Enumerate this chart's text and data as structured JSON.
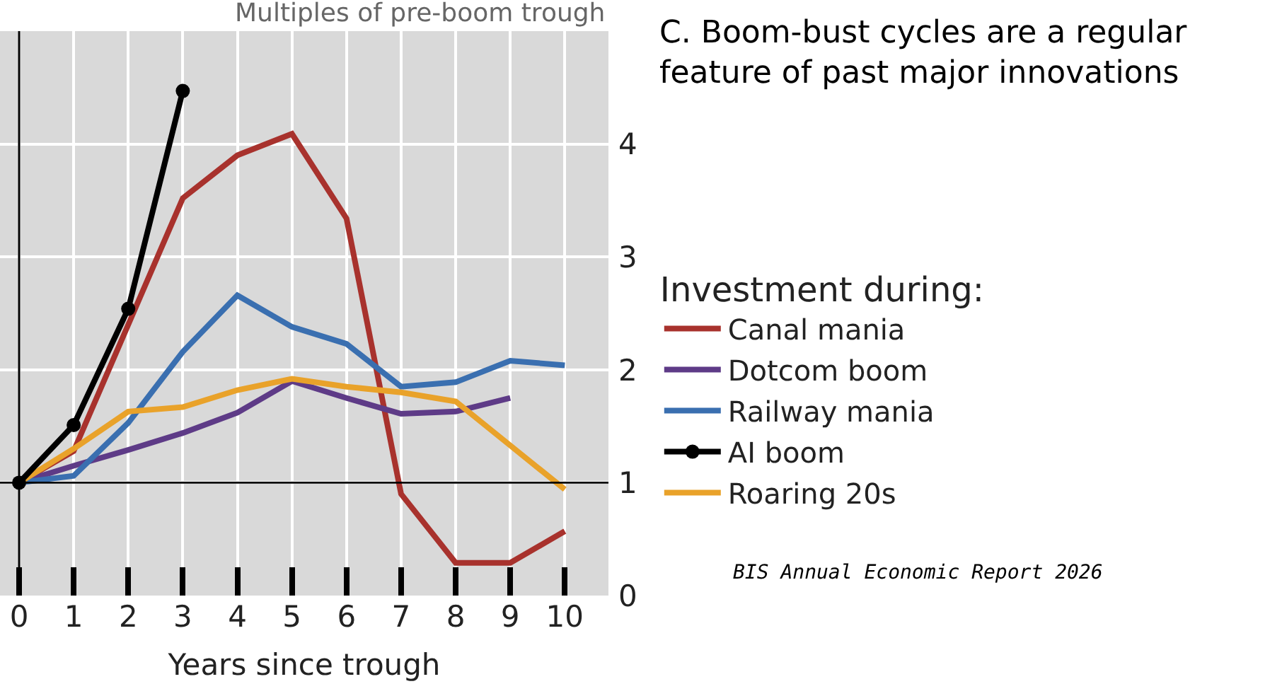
{
  "chart_data": {
    "type": "line",
    "title": "C. Boom-bust cycles are a regular feature of past major innovations",
    "xlabel": "Years since trough",
    "ylabel": "Multiples of pre-boom trough",
    "legend_title": "Investment during:",
    "x": [
      0,
      1,
      2,
      3,
      4,
      5,
      6,
      7,
      8,
      9,
      10
    ],
    "series": [
      {
        "name": "Canal mania",
        "color": "#a8322d",
        "values": [
          1,
          1.28,
          2.4,
          3.52,
          3.9,
          4.09,
          3.34,
          0.9,
          0.29,
          0.29,
          0.57
        ]
      },
      {
        "name": "Dotcom boom",
        "color": "#5e3b87",
        "values": [
          1,
          1.15,
          1.29,
          1.44,
          1.62,
          1.9,
          1.75,
          1.61,
          1.63,
          1.75,
          null
        ]
      },
      {
        "name": "Railway mania",
        "color": "#3a6fb0",
        "values": [
          1,
          1.06,
          1.53,
          2.16,
          2.66,
          2.38,
          2.23,
          1.85,
          1.89,
          2.08,
          2.04
        ]
      },
      {
        "name": "AI boom",
        "color": "#000000",
        "values": [
          1,
          1.51,
          2.54,
          4.47,
          null,
          null,
          null,
          null,
          null,
          null,
          null
        ],
        "marker": "circle"
      },
      {
        "name": "Roaring 20s",
        "color": "#e9a22a",
        "values": [
          1,
          1.3,
          1.63,
          1.67,
          1.82,
          1.92,
          1.85,
          1.8,
          1.72,
          1.33,
          0.94
        ]
      }
    ],
    "xlim": [
      -0.35,
      10.8
    ],
    "xticks": [
      0,
      1,
      2,
      3,
      4,
      5,
      6,
      7,
      8,
      9,
      10
    ],
    "ylim": [
      0,
      5
    ],
    "yticks": [
      0,
      1,
      2,
      3,
      4
    ],
    "ref_lines": [
      {
        "axis": "y",
        "value": 1,
        "color": "#000000"
      },
      {
        "axis": "x",
        "value": 0,
        "color": "#000000"
      }
    ],
    "grid": true,
    "legend": "right",
    "line_style": "solid",
    "annotations": [
      "BIS Annual Economic Report 2026"
    ]
  }
}
